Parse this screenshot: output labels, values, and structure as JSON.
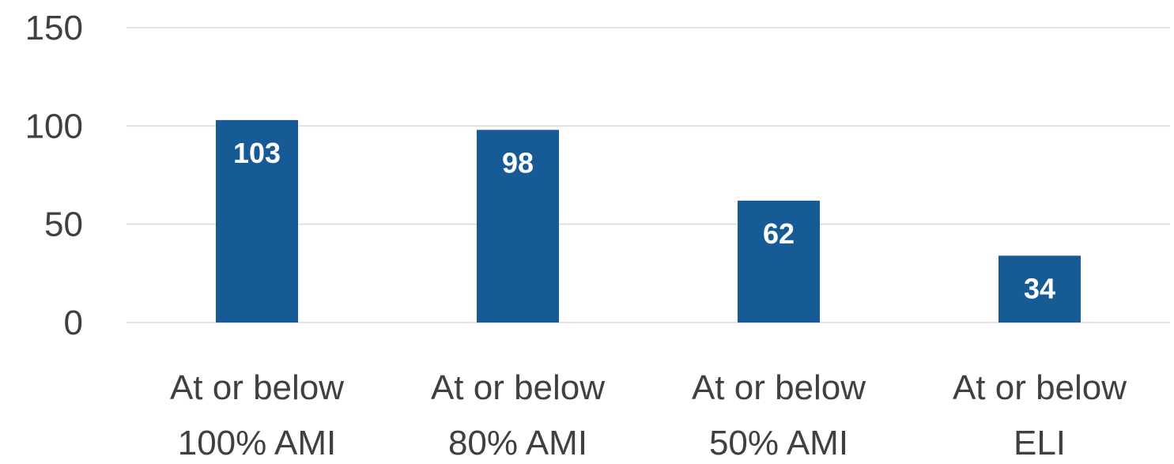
{
  "chart_data": {
    "type": "bar",
    "categories": [
      [
        "At or below",
        "100% AMI"
      ],
      [
        "At or below",
        "80% AMI"
      ],
      [
        "At or below",
        "50% AMI"
      ],
      [
        "At or below",
        "ELI"
      ]
    ],
    "values": [
      103,
      98,
      62,
      34
    ],
    "data_labels": [
      "103",
      "98",
      "62",
      "34"
    ],
    "yticks": [
      0,
      50,
      100,
      150
    ],
    "ytick_labels": [
      "0",
      "50",
      "100",
      "150"
    ],
    "ylim": [
      0,
      150
    ],
    "grid": true,
    "legend": "none",
    "bar_color": "#165a96",
    "grid_color": "#d9d9d9",
    "label_color": "#404040",
    "data_label_color": "#ffffff",
    "title": "",
    "xlabel": "",
    "ylabel": ""
  }
}
